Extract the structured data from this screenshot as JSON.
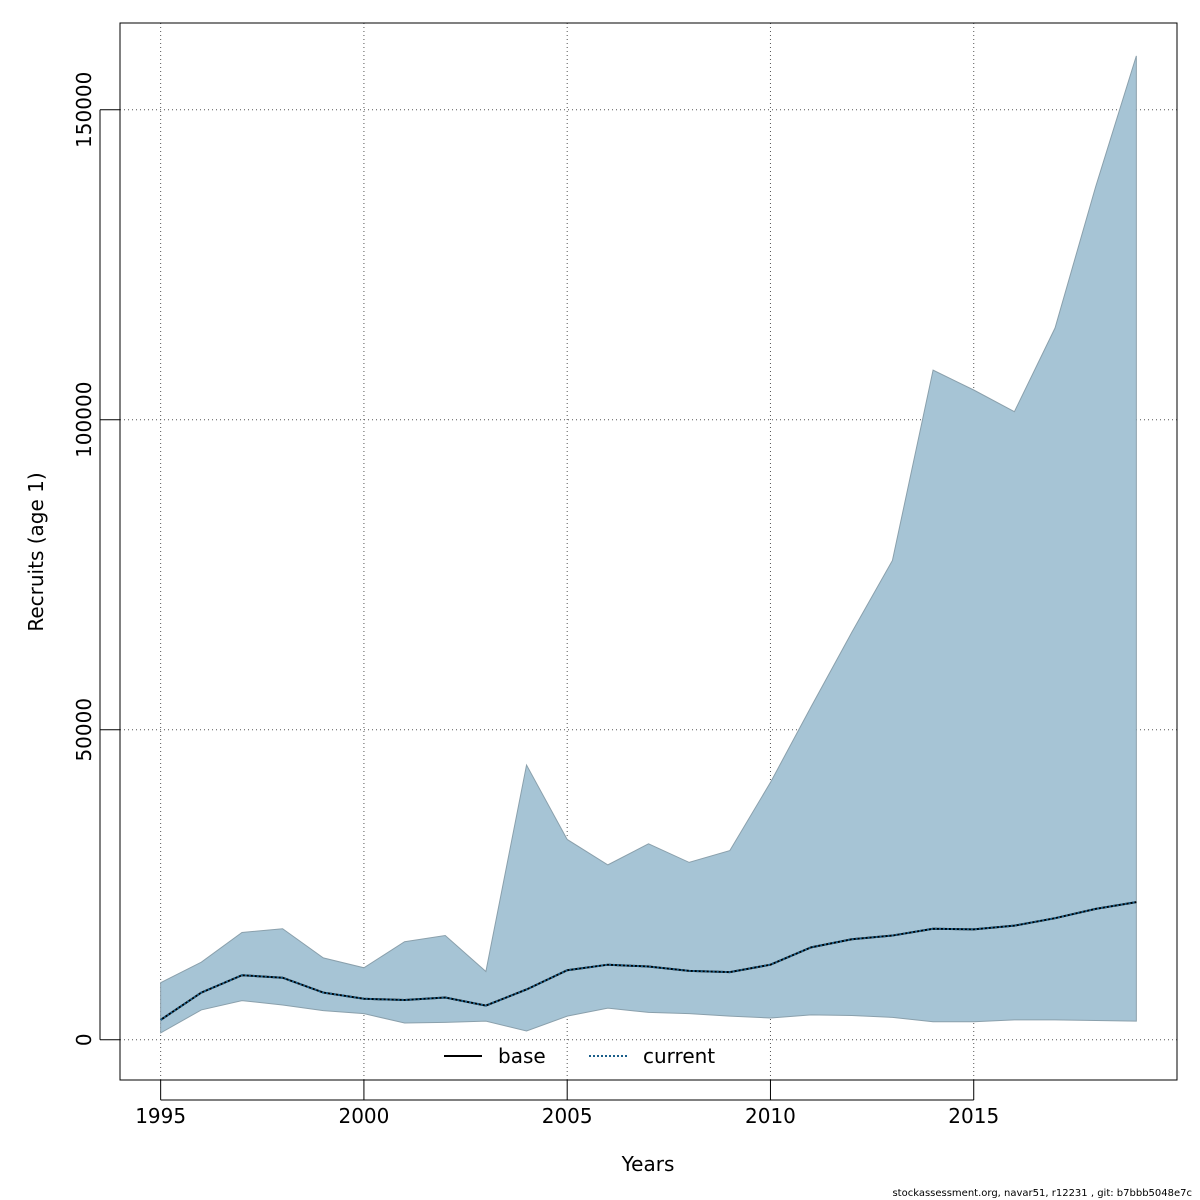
{
  "chart_data": {
    "type": "area",
    "xlabel": "Years",
    "ylabel": "Recruits (age 1)",
    "xlim": [
      1994,
      2020
    ],
    "ylim": [
      -6500,
      164000
    ],
    "x_ticks": [
      1995,
      2000,
      2005,
      2010,
      2015
    ],
    "y_ticks": [
      0,
      50000,
      100000,
      150000
    ],
    "grid": true,
    "legend_position": "bottom-center",
    "x": [
      1995,
      1996,
      1997,
      1998,
      1999,
      2000,
      2001,
      2002,
      2003,
      2004,
      2005,
      2006,
      2007,
      2008,
      2009,
      2010,
      2011,
      2012,
      2013,
      2014,
      2015,
      2016,
      2017,
      2018,
      2019
    ],
    "band": {
      "upper": [
        9200,
        12500,
        17300,
        17900,
        13200,
        11600,
        15800,
        16800,
        11000,
        44300,
        32300,
        28200,
        31600,
        28600,
        30500,
        41500,
        53700,
        65700,
        77300,
        108000,
        104800,
        101300,
        114800,
        137600,
        158700
      ],
      "lower": [
        1100,
        4800,
        6300,
        5600,
        4700,
        4200,
        2700,
        2800,
        3000,
        1400,
        3800,
        5100,
        4400,
        4200,
        3800,
        3500,
        4000,
        3900,
        3600,
        2900,
        2900,
        3200,
        3200,
        3100,
        3000
      ],
      "fill": "#a6c4d5",
      "stroke": "#8aa0ac"
    },
    "series": [
      {
        "name": "base",
        "style": "solid",
        "color": "#000000",
        "values": [
          3200,
          7600,
          10400,
          10000,
          7600,
          6600,
          6400,
          6800,
          5500,
          8100,
          11200,
          12100,
          11800,
          11100,
          10900,
          12100,
          14900,
          16200,
          16800,
          17900,
          17800,
          18400,
          19600,
          21100,
          22200
        ]
      },
      {
        "name": "current",
        "style": "dotted",
        "color": "#1a5f8a",
        "values": [
          3200,
          7600,
          10400,
          10000,
          7600,
          6600,
          6400,
          6800,
          5500,
          8100,
          11200,
          12100,
          11800,
          11100,
          10900,
          12100,
          14900,
          16200,
          16800,
          17900,
          17800,
          18400,
          19600,
          21100,
          22200
        ]
      }
    ]
  },
  "footer": "stockassessment.org, navar51, r12231 , git: b7bbb5048e7c"
}
